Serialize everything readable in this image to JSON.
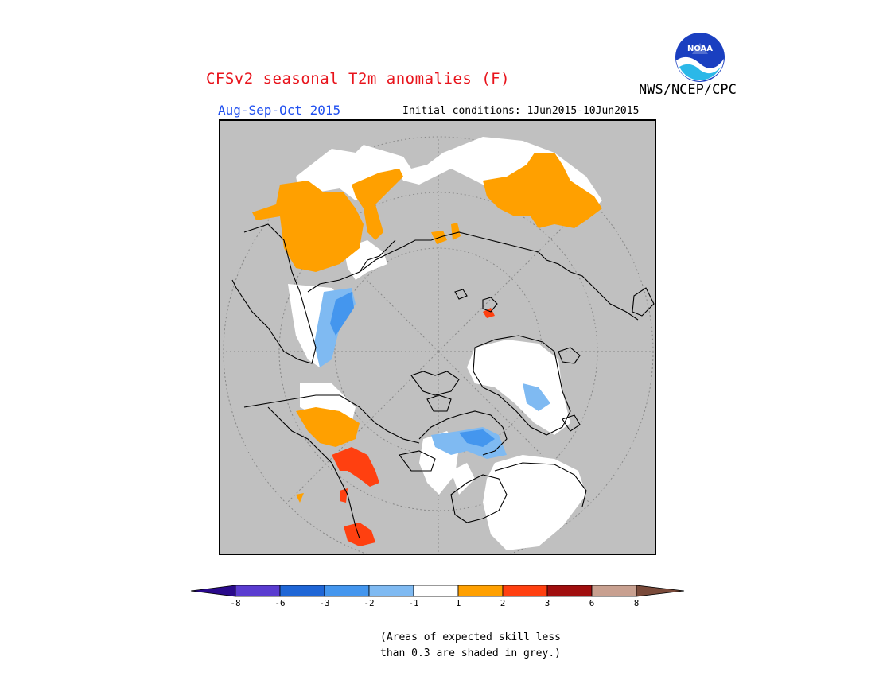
{
  "header": {
    "title": "CFSv2 seasonal T2m anomalies (F)",
    "period": "Aug-Sep-Oct 2015",
    "initial_conditions": "Initial conditions: 1Jun2015-10Jun2015",
    "agency": "NWS/NCEP/CPC",
    "logo_text": "NOAA"
  },
  "legend": {
    "labels": [
      "-8",
      "-6",
      "-3",
      "-2",
      "-1",
      "1",
      "2",
      "3",
      "6",
      "8"
    ],
    "colors": [
      "#2a0a8c",
      "#5a3cd0",
      "#1f66d6",
      "#4496ee",
      "#7fbaf2",
      "#ffffff",
      "#ffa000",
      "#ff4010",
      "#a00e0e",
      "#c8a090",
      "#7a4a3a"
    ]
  },
  "note": {
    "line1": "(Areas of expected skill less",
    "line2": "than 0.3 are shaded in grey.)"
  },
  "map": {
    "projection": "north polar stereographic",
    "background_color": "#c0c0c0",
    "no_skill_color": "#c0c0c0"
  }
}
